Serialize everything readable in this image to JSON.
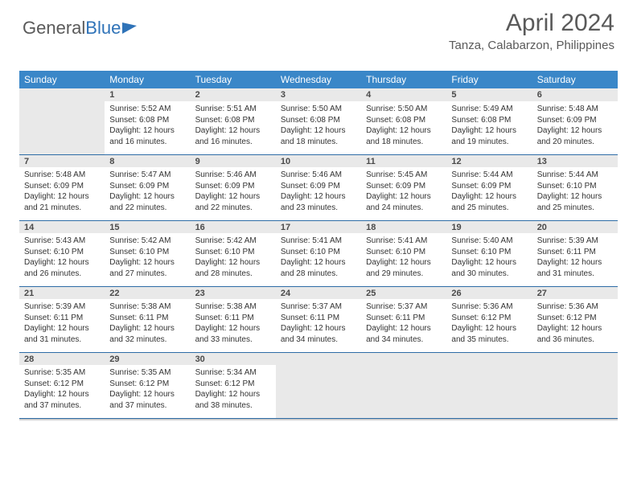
{
  "brand": {
    "name_gray": "General",
    "name_blue": "Blue"
  },
  "header": {
    "month_title": "April 2024",
    "location": "Tanza, Calabarzon, Philippines"
  },
  "colors": {
    "header_bg": "#3a87c8",
    "text_gray": "#5a5a5a",
    "rule": "#2e6ca6",
    "cell_gray": "#e9e9e9"
  },
  "weekdays": [
    "Sunday",
    "Monday",
    "Tuesday",
    "Wednesday",
    "Thursday",
    "Friday",
    "Saturday"
  ],
  "first_weekday_index": 1,
  "days": [
    {
      "n": 1,
      "sunrise": "5:52 AM",
      "sunset": "6:08 PM",
      "daylight": "12 hours and 16 minutes."
    },
    {
      "n": 2,
      "sunrise": "5:51 AM",
      "sunset": "6:08 PM",
      "daylight": "12 hours and 16 minutes."
    },
    {
      "n": 3,
      "sunrise": "5:50 AM",
      "sunset": "6:08 PM",
      "daylight": "12 hours and 18 minutes."
    },
    {
      "n": 4,
      "sunrise": "5:50 AM",
      "sunset": "6:08 PM",
      "daylight": "12 hours and 18 minutes."
    },
    {
      "n": 5,
      "sunrise": "5:49 AM",
      "sunset": "6:08 PM",
      "daylight": "12 hours and 19 minutes."
    },
    {
      "n": 6,
      "sunrise": "5:48 AM",
      "sunset": "6:09 PM",
      "daylight": "12 hours and 20 minutes."
    },
    {
      "n": 7,
      "sunrise": "5:48 AM",
      "sunset": "6:09 PM",
      "daylight": "12 hours and 21 minutes."
    },
    {
      "n": 8,
      "sunrise": "5:47 AM",
      "sunset": "6:09 PM",
      "daylight": "12 hours and 22 minutes."
    },
    {
      "n": 9,
      "sunrise": "5:46 AM",
      "sunset": "6:09 PM",
      "daylight": "12 hours and 22 minutes."
    },
    {
      "n": 10,
      "sunrise": "5:46 AM",
      "sunset": "6:09 PM",
      "daylight": "12 hours and 23 minutes."
    },
    {
      "n": 11,
      "sunrise": "5:45 AM",
      "sunset": "6:09 PM",
      "daylight": "12 hours and 24 minutes."
    },
    {
      "n": 12,
      "sunrise": "5:44 AM",
      "sunset": "6:09 PM",
      "daylight": "12 hours and 25 minutes."
    },
    {
      "n": 13,
      "sunrise": "5:44 AM",
      "sunset": "6:10 PM",
      "daylight": "12 hours and 25 minutes."
    },
    {
      "n": 14,
      "sunrise": "5:43 AM",
      "sunset": "6:10 PM",
      "daylight": "12 hours and 26 minutes."
    },
    {
      "n": 15,
      "sunrise": "5:42 AM",
      "sunset": "6:10 PM",
      "daylight": "12 hours and 27 minutes."
    },
    {
      "n": 16,
      "sunrise": "5:42 AM",
      "sunset": "6:10 PM",
      "daylight": "12 hours and 28 minutes."
    },
    {
      "n": 17,
      "sunrise": "5:41 AM",
      "sunset": "6:10 PM",
      "daylight": "12 hours and 28 minutes."
    },
    {
      "n": 18,
      "sunrise": "5:41 AM",
      "sunset": "6:10 PM",
      "daylight": "12 hours and 29 minutes."
    },
    {
      "n": 19,
      "sunrise": "5:40 AM",
      "sunset": "6:10 PM",
      "daylight": "12 hours and 30 minutes."
    },
    {
      "n": 20,
      "sunrise": "5:39 AM",
      "sunset": "6:11 PM",
      "daylight": "12 hours and 31 minutes."
    },
    {
      "n": 21,
      "sunrise": "5:39 AM",
      "sunset": "6:11 PM",
      "daylight": "12 hours and 31 minutes."
    },
    {
      "n": 22,
      "sunrise": "5:38 AM",
      "sunset": "6:11 PM",
      "daylight": "12 hours and 32 minutes."
    },
    {
      "n": 23,
      "sunrise": "5:38 AM",
      "sunset": "6:11 PM",
      "daylight": "12 hours and 33 minutes."
    },
    {
      "n": 24,
      "sunrise": "5:37 AM",
      "sunset": "6:11 PM",
      "daylight": "12 hours and 34 minutes."
    },
    {
      "n": 25,
      "sunrise": "5:37 AM",
      "sunset": "6:11 PM",
      "daylight": "12 hours and 34 minutes."
    },
    {
      "n": 26,
      "sunrise": "5:36 AM",
      "sunset": "6:12 PM",
      "daylight": "12 hours and 35 minutes."
    },
    {
      "n": 27,
      "sunrise": "5:36 AM",
      "sunset": "6:12 PM",
      "daylight": "12 hours and 36 minutes."
    },
    {
      "n": 28,
      "sunrise": "5:35 AM",
      "sunset": "6:12 PM",
      "daylight": "12 hours and 37 minutes."
    },
    {
      "n": 29,
      "sunrise": "5:35 AM",
      "sunset": "6:12 PM",
      "daylight": "12 hours and 37 minutes."
    },
    {
      "n": 30,
      "sunrise": "5:34 AM",
      "sunset": "6:12 PM",
      "daylight": "12 hours and 38 minutes."
    }
  ],
  "labels": {
    "sunrise": "Sunrise:",
    "sunset": "Sunset:",
    "daylight": "Daylight:"
  }
}
